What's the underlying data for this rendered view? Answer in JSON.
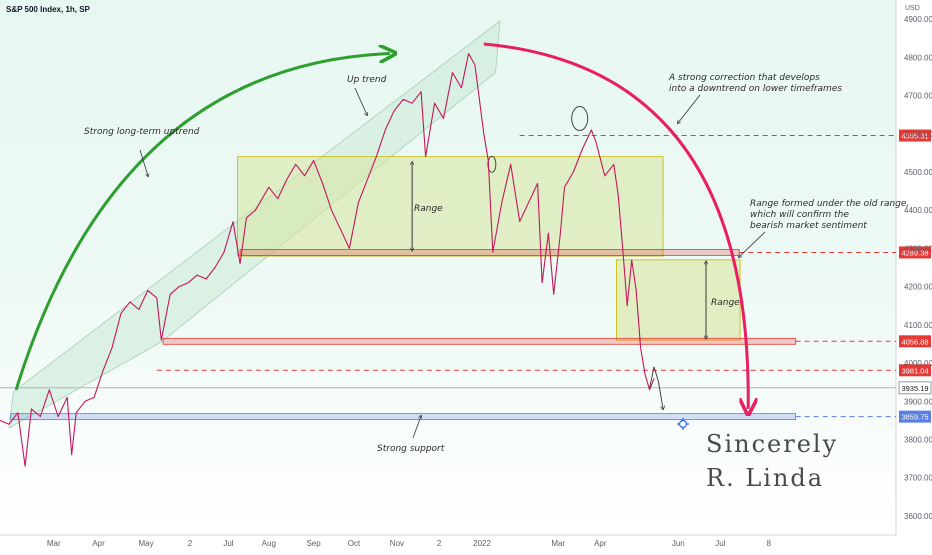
{
  "header": {
    "symbol_title": "S&P 500 Index, 1h, SP",
    "currency": "USD"
  },
  "chart_data": {
    "type": "line",
    "title": "S&P 500 Index, 1h, SP",
    "ylabel": "USD",
    "ylim": [
      3550,
      4950
    ],
    "y_ticks": [
      3600,
      3700,
      3800,
      3900,
      4000,
      4100,
      4200,
      4300,
      4400,
      4500,
      4600,
      4700,
      4800,
      4900
    ],
    "y_tick_labels": [
      "3600.00",
      "3700.00",
      "3800.00",
      "3900.00",
      "4000.00",
      "4100.00",
      "4200.00",
      "4300.00",
      "4400.00",
      "4500.00",
      "4600.00",
      "4700.00",
      "4800.00",
      "4900.00"
    ],
    "x_labels": [
      {
        "label": "Mar",
        "t": 0.06
      },
      {
        "label": "Apr",
        "t": 0.11
      },
      {
        "label": "May",
        "t": 0.163
      },
      {
        "label": "2",
        "t": 0.212
      },
      {
        "label": "Jul",
        "t": 0.255
      },
      {
        "label": "Aug",
        "t": 0.3
      },
      {
        "label": "Sep",
        "t": 0.35
      },
      {
        "label": "Oct",
        "t": 0.395
      },
      {
        "label": "Nov",
        "t": 0.443
      },
      {
        "label": "2",
        "t": 0.49
      },
      {
        "label": "2022",
        "t": 0.538
      },
      {
        "label": "Mar",
        "t": 0.623
      },
      {
        "label": "Apr",
        "t": 0.67
      },
      {
        "label": "Jun",
        "t": 0.757
      },
      {
        "label": "Jul",
        "t": 0.804
      },
      {
        "label": "8",
        "t": 0.858
      }
    ],
    "series": [
      {
        "color": "#c2185b",
        "points": [
          [
            0.0,
            3850
          ],
          [
            0.01,
            3840
          ],
          [
            0.02,
            3870
          ],
          [
            0.028,
            3730
          ],
          [
            0.035,
            3880
          ],
          [
            0.045,
            3860
          ],
          [
            0.055,
            3930
          ],
          [
            0.065,
            3860
          ],
          [
            0.075,
            3910
          ],
          [
            0.08,
            3760
          ],
          [
            0.085,
            3870
          ],
          [
            0.095,
            3900
          ],
          [
            0.105,
            3910
          ],
          [
            0.115,
            3980
          ],
          [
            0.125,
            4040
          ],
          [
            0.135,
            4130
          ],
          [
            0.145,
            4160
          ],
          [
            0.155,
            4140
          ],
          [
            0.165,
            4190
          ],
          [
            0.175,
            4170
          ],
          [
            0.18,
            4060
          ],
          [
            0.19,
            4180
          ],
          [
            0.2,
            4200
          ],
          [
            0.21,
            4210
          ],
          [
            0.22,
            4230
          ],
          [
            0.23,
            4220
          ],
          [
            0.24,
            4250
          ],
          [
            0.25,
            4290
          ],
          [
            0.26,
            4370
          ],
          [
            0.268,
            4260
          ],
          [
            0.275,
            4380
          ],
          [
            0.285,
            4400
          ],
          [
            0.3,
            4460
          ],
          [
            0.31,
            4430
          ],
          [
            0.32,
            4480
          ],
          [
            0.33,
            4520
          ],
          [
            0.34,
            4490
          ],
          [
            0.35,
            4530
          ],
          [
            0.36,
            4470
          ],
          [
            0.37,
            4400
          ],
          [
            0.38,
            4350
          ],
          [
            0.39,
            4300
          ],
          [
            0.4,
            4420
          ],
          [
            0.41,
            4480
          ],
          [
            0.42,
            4540
          ],
          [
            0.43,
            4610
          ],
          [
            0.44,
            4660
          ],
          [
            0.45,
            4690
          ],
          [
            0.46,
            4680
          ],
          [
            0.47,
            4710
          ],
          [
            0.475,
            4540
          ],
          [
            0.485,
            4680
          ],
          [
            0.495,
            4640
          ],
          [
            0.505,
            4760
          ],
          [
            0.515,
            4720
          ],
          [
            0.523,
            4810
          ],
          [
            0.53,
            4780
          ],
          [
            0.535,
            4690
          ],
          [
            0.54,
            4600
          ],
          [
            0.545,
            4530
          ],
          [
            0.55,
            4290
          ],
          [
            0.56,
            4420
          ],
          [
            0.57,
            4520
          ],
          [
            0.58,
            4370
          ],
          [
            0.59,
            4420
          ],
          [
            0.6,
            4470
          ],
          [
            0.605,
            4210
          ],
          [
            0.612,
            4340
          ],
          [
            0.618,
            4180
          ],
          [
            0.625,
            4330
          ],
          [
            0.63,
            4460
          ],
          [
            0.64,
            4500
          ],
          [
            0.65,
            4560
          ],
          [
            0.66,
            4610
          ],
          [
            0.665,
            4580
          ],
          [
            0.675,
            4490
          ],
          [
            0.685,
            4520
          ],
          [
            0.69,
            4440
          ],
          [
            0.695,
            4300
          ],
          [
            0.7,
            4150
          ],
          [
            0.705,
            4270
          ],
          [
            0.71,
            4190
          ],
          [
            0.715,
            4040
          ],
          [
            0.72,
            3970
          ],
          [
            0.725,
            3930
          ],
          [
            0.73,
            3960
          ]
        ]
      }
    ],
    "levels": [
      {
        "value": 4595.31,
        "label": "4595.31",
        "style": "red-dashed"
      },
      {
        "value": 4289.38,
        "label": "4289.38",
        "style": "red-dashed"
      },
      {
        "value": 4056.88,
        "label": "4056.88",
        "style": "red-dashed"
      },
      {
        "value": 3981.04,
        "label": "3981.04",
        "style": "red-dashed"
      },
      {
        "value": 3935.19,
        "label": "3935.19",
        "style": "grey-current"
      },
      {
        "value": 3859.75,
        "label": "3859.75",
        "style": "blue-dashed"
      }
    ],
    "annotations": {
      "uptrend": "Strong long-term uptrend",
      "up_trend": "Up trend",
      "range1": "Range",
      "range2": "Range",
      "correction_line1": "A strong correction that develops",
      "correction_line2": "into a downtrend on lower timeframes",
      "range_formed_line1": "Range formed under the old range,",
      "range_formed_line2": "which will confirm the",
      "range_formed_line3": "bearish market sentiment",
      "support": "Strong support",
      "signature_line1": "Sincerely",
      "signature_line2": "R. Linda"
    },
    "colors": {
      "uptrend_arrow": "#2e9e2e",
      "correction_arrow": "#e91e63",
      "range_box": "#d7e6a0",
      "support_band": "#5b7fe0",
      "level_red": "#e53935",
      "channel": "#b9dfc6"
    }
  }
}
